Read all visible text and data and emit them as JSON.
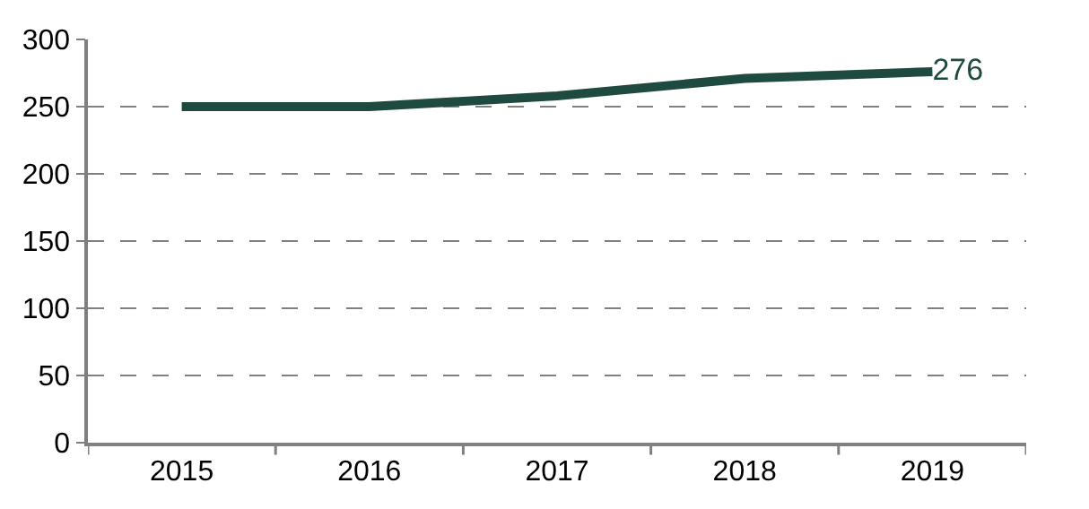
{
  "chart_data": {
    "type": "line",
    "categories": [
      "2015",
      "2016",
      "2017",
      "2018",
      "2019"
    ],
    "series": [
      {
        "color": "#1f4a40",
        "values": [
          250,
          250,
          258,
          271,
          276
        ],
        "value_labels": [
          null,
          null,
          null,
          null,
          "276"
        ]
      }
    ],
    "ylim": [
      0,
      300
    ],
    "yticks": [
      0,
      50,
      100,
      150,
      200,
      250,
      300
    ],
    "grid": "y",
    "marker": "none",
    "line_style": "solid"
  }
}
